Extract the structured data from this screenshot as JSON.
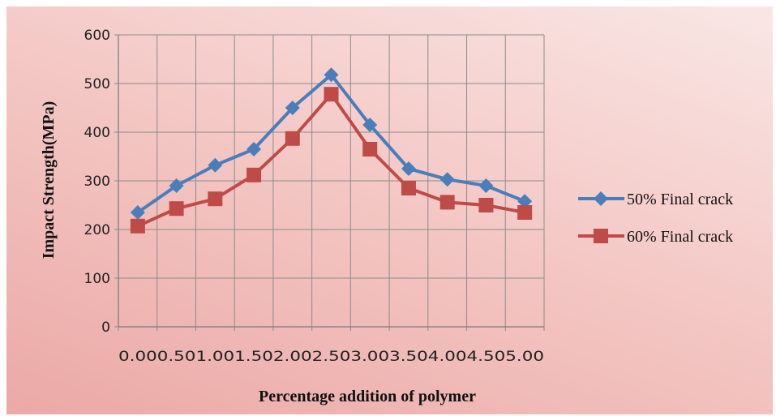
{
  "chart_data": {
    "type": "line",
    "title": "",
    "xlabel": "Percentage addition of polymer",
    "ylabel": "Impact Strength(MPa)",
    "ylim": [
      0,
      600
    ],
    "yticks": [
      0,
      100,
      200,
      300,
      400,
      500,
      600
    ],
    "xtick_labels": [
      "0.00",
      "0.50",
      "1.00",
      "1.50",
      "2.00",
      "2.50",
      "3.00",
      "3.50",
      "4.00",
      "4.50",
      "5.00"
    ],
    "grid": true,
    "legend_position": "right",
    "series": [
      {
        "name": "50% Final crack",
        "color": "#4a7ebb",
        "marker": "diamond",
        "values": [
          235,
          290,
          332,
          365,
          450,
          518,
          415,
          325,
          303,
          290,
          258
        ]
      },
      {
        "name": "60% Final crack",
        "color": "#be4b48",
        "marker": "square",
        "values": [
          207,
          243,
          263,
          312,
          387,
          478,
          365,
          285,
          256,
          250,
          235
        ]
      }
    ]
  }
}
